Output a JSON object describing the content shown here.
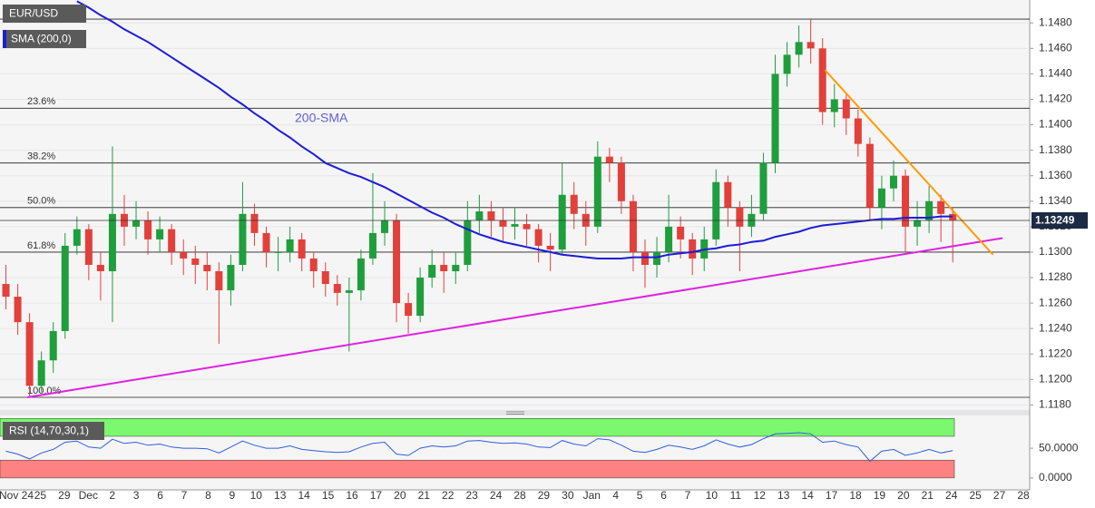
{
  "chart_data": {
    "type": "candlestick",
    "symbol": "EUR/USD",
    "annotation": "200-SMA",
    "xlim": [
      -0.5,
      86.5
    ],
    "ylim": [
      1.1176,
      1.1498
    ],
    "yticks": [
      {
        "value": 1.118,
        "label": "1.1180"
      },
      {
        "value": 1.12,
        "label": "1.1200"
      },
      {
        "value": 1.122,
        "label": "1.1220"
      },
      {
        "value": 1.124,
        "label": "1.1240"
      },
      {
        "value": 1.126,
        "label": "1.1260"
      },
      {
        "value": 1.128,
        "label": "1.1280"
      },
      {
        "value": 1.13,
        "label": "1.1300"
      },
      {
        "value": 1.132,
        "label": "1.1320"
      },
      {
        "value": 1.134,
        "label": "1.1340"
      },
      {
        "value": 1.136,
        "label": "1.1360"
      },
      {
        "value": 1.138,
        "label": "1.1380"
      },
      {
        "value": 1.14,
        "label": "1.1400"
      },
      {
        "value": 1.142,
        "label": "1.1420"
      },
      {
        "value": 1.144,
        "label": "1.1440"
      },
      {
        "value": 1.146,
        "label": "1.1460"
      },
      {
        "value": 1.148,
        "label": "1.1480"
      }
    ],
    "grid": true,
    "x_labels": [
      "Nov 24",
      "25",
      "29",
      "Dec",
      "2",
      "3",
      "6",
      "7",
      "8",
      "9",
      "10",
      "13",
      "14",
      "15",
      "16",
      "17",
      "20",
      "21",
      "22",
      "23",
      "24",
      "28",
      "29",
      "30",
      "Jan",
      "4",
      "5",
      "6",
      "7",
      "10",
      "11",
      "12",
      "13",
      "14",
      "17",
      "18",
      "19",
      "20",
      "21",
      "24",
      "25",
      "27",
      "28"
    ],
    "up_color": "#1f9e3c",
    "down_color": "#e2403a",
    "open": [
      1.1275,
      1.1265,
      1.1245,
      1.1195,
      1.1215,
      1.1238,
      1.1305,
      1.1318,
      1.129,
      1.1285,
      1.133,
      1.132,
      1.1325,
      1.131,
      1.1318,
      1.13,
      1.1295,
      1.129,
      1.1285,
      1.127,
      1.129,
      1.133,
      1.1315,
      1.13,
      1.13,
      1.131,
      1.1295,
      1.1285,
      1.1275,
      1.1268,
      1.127,
      1.1295,
      1.1315,
      1.1325,
      1.126,
      1.125,
      1.128,
      1.129,
      1.1285,
      1.129,
      1.1325,
      1.1332,
      1.1325,
      1.132,
      1.1322,
      1.1318,
      1.1305,
      1.1302,
      1.1345,
      1.133,
      1.132,
      1.1375,
      1.137,
      1.134,
      1.13,
      1.129,
      1.13,
      1.132,
      1.131,
      1.1295,
      1.131,
      1.1355,
      1.1335,
      1.132,
      1.133,
      1.137,
      1.144,
      1.1455,
      1.1465,
      1.146,
      1.141,
      1.142,
      1.1405,
      1.1385,
      1.1335,
      1.135,
      1.136,
      1.132,
      1.1325,
      1.134,
      1.133
    ],
    "high": [
      1.129,
      1.1275,
      1.1252,
      1.1222,
      1.1245,
      1.1315,
      1.1328,
      1.1322,
      1.13,
      1.1383,
      1.1345,
      1.134,
      1.1332,
      1.1328,
      1.1322,
      1.131,
      1.1305,
      1.13,
      1.1292,
      1.1298,
      1.1355,
      1.1338,
      1.132,
      1.1312,
      1.132,
      1.1315,
      1.13,
      1.1292,
      1.1282,
      1.128,
      1.1302,
      1.1362,
      1.134,
      1.133,
      1.1268,
      1.1288,
      1.1302,
      1.13,
      1.13,
      1.134,
      1.1345,
      1.134,
      1.1335,
      1.1335,
      1.133,
      1.1322,
      1.1315,
      1.137,
      1.1355,
      1.134,
      1.1387,
      1.1382,
      1.1375,
      1.1345,
      1.131,
      1.1312,
      1.1345,
      1.1328,
      1.1315,
      1.132,
      1.1365,
      1.136,
      1.134,
      1.1345,
      1.1378,
      1.1455,
      1.1465,
      1.1478,
      1.1483,
      1.1468,
      1.1432,
      1.1425,
      1.1412,
      1.139,
      1.136,
      1.1372,
      1.1365,
      1.134,
      1.1352,
      1.1345,
      1.1335
    ],
    "low": [
      1.1255,
      1.1235,
      1.1186,
      1.119,
      1.1205,
      1.1232,
      1.1298,
      1.1278,
      1.1262,
      1.1245,
      1.1305,
      1.131,
      1.1298,
      1.13,
      1.129,
      1.1282,
      1.1275,
      1.127,
      1.1228,
      1.1258,
      1.1285,
      1.1305,
      1.1288,
      1.1285,
      1.1292,
      1.1285,
      1.1272,
      1.1265,
      1.1258,
      1.1222,
      1.1262,
      1.129,
      1.1305,
      1.1245,
      1.1236,
      1.1245,
      1.1272,
      1.1268,
      1.1275,
      1.1285,
      1.1315,
      1.1312,
      1.1308,
      1.131,
      1.1305,
      1.1292,
      1.1285,
      1.1298,
      1.1318,
      1.1305,
      1.1315,
      1.1355,
      1.133,
      1.1285,
      1.1272,
      1.128,
      1.1292,
      1.1295,
      1.1282,
      1.1285,
      1.1305,
      1.132,
      1.1285,
      1.1312,
      1.1325,
      1.1362,
      1.143,
      1.1445,
      1.1448,
      1.14,
      1.1398,
      1.1392,
      1.1375,
      1.1325,
      1.1318,
      1.134,
      1.13,
      1.1305,
      1.1315,
      1.1308,
      1.1292
    ],
    "close": [
      1.1265,
      1.1245,
      1.1195,
      1.1215,
      1.1238,
      1.1305,
      1.1318,
      1.129,
      1.1285,
      1.133,
      1.132,
      1.1325,
      1.131,
      1.1318,
      1.13,
      1.1295,
      1.129,
      1.1285,
      1.127,
      1.129,
      1.133,
      1.1315,
      1.13,
      1.13,
      1.131,
      1.1295,
      1.1285,
      1.1275,
      1.1268,
      1.127,
      1.1295,
      1.1315,
      1.1325,
      1.126,
      1.125,
      1.128,
      1.129,
      1.1285,
      1.129,
      1.1325,
      1.1332,
      1.1325,
      1.132,
      1.1322,
      1.1318,
      1.1305,
      1.1302,
      1.1345,
      1.133,
      1.132,
      1.1375,
      1.137,
      1.134,
      1.13,
      1.129,
      1.13,
      1.132,
      1.131,
      1.1295,
      1.131,
      1.1355,
      1.1335,
      1.132,
      1.133,
      1.137,
      1.144,
      1.1455,
      1.1465,
      1.146,
      1.141,
      1.142,
      1.1405,
      1.1385,
      1.1335,
      1.135,
      1.136,
      1.132,
      1.1325,
      1.134,
      1.133,
      1.1325
    ],
    "sma": {
      "name": "SMA (200,0)",
      "color": "#1c1cd8",
      "values": [
        null,
        null,
        null,
        null,
        null,
        null,
        1.1497,
        1.1492,
        1.1486,
        1.1481,
        1.1475,
        1.147,
        1.1465,
        1.1459,
        1.1453,
        1.1447,
        1.1441,
        1.1435,
        1.1429,
        1.1422,
        1.1416,
        1.1409,
        1.1403,
        1.1396,
        1.139,
        1.1383,
        1.1377,
        1.137,
        1.1366,
        1.1362,
        1.1359,
        1.1355,
        1.1351,
        1.1346,
        1.1341,
        1.1336,
        1.1331,
        1.1327,
        1.1322,
        1.1318,
        1.1314,
        1.1311,
        1.1308,
        1.1306,
        1.1304,
        1.1302,
        1.13,
        1.1298,
        1.1297,
        1.1296,
        1.1295,
        1.1295,
        1.1295,
        1.1296,
        1.1296,
        1.1296,
        1.1298,
        1.1299,
        1.13,
        1.1302,
        1.1303,
        1.1305,
        1.1306,
        1.1308,
        1.1309,
        1.1312,
        1.1314,
        1.1316,
        1.1319,
        1.1321,
        1.1322,
        1.1323,
        1.1324,
        1.1325,
        1.1326,
        1.1326,
        1.1327,
        1.1327,
        1.1327,
        1.1328,
        1.1328
      ]
    },
    "annotation_color": "#6060d0",
    "last_price": 1.13249,
    "levels": [
      {
        "label": null,
        "value": 1.1483
      },
      {
        "label": "23.6%",
        "value": 1.1413
      },
      {
        "label": "38.2%",
        "value": 1.137
      },
      {
        "label": "50.0%",
        "value": 1.1335
      },
      {
        "label": "61.8%",
        "value": 1.13
      },
      {
        "label": "100.0%",
        "value": 1.1186
      }
    ],
    "trendlines": [
      {
        "color": "#e020e0",
        "x": [
          1.8,
          84.2
        ],
        "y": [
          1.1186,
          1.1311
        ]
      },
      {
        "color": "#ff9a00",
        "x": [
          69.2,
          83.4
        ],
        "y": [
          1.1443,
          1.1298
        ]
      }
    ],
    "rsi": {
      "type": "line",
      "name": "RSI (14,70,30,1)",
      "color": "#2f5fd8",
      "ylim": [
        -20,
        105
      ],
      "yticks": [
        {
          "value": 0,
          "label": "0.0000"
        },
        {
          "value": 50,
          "label": "50.0000"
        }
      ],
      "upper_band": [
        70,
        100
      ],
      "upper_color": "#7cf86f",
      "lower_band": [
        0,
        30
      ],
      "lower_color": "#ff8282",
      "values": [
        45,
        40,
        32,
        42,
        48,
        60,
        62,
        52,
        50,
        65,
        58,
        60,
        55,
        57,
        52,
        50,
        50,
        49,
        42,
        52,
        62,
        55,
        50,
        50,
        54,
        48,
        46,
        44,
        43,
        44,
        52,
        58,
        60,
        40,
        38,
        50,
        54,
        52,
        54,
        62,
        63,
        60,
        58,
        59,
        57,
        52,
        51,
        63,
        57,
        54,
        66,
        64,
        55,
        45,
        43,
        48,
        55,
        52,
        48,
        54,
        64,
        57,
        52,
        56,
        66,
        74,
        75,
        76,
        74,
        60,
        62,
        56,
        52,
        28,
        45,
        48,
        38,
        42,
        48,
        42,
        46
      ]
    }
  }
}
